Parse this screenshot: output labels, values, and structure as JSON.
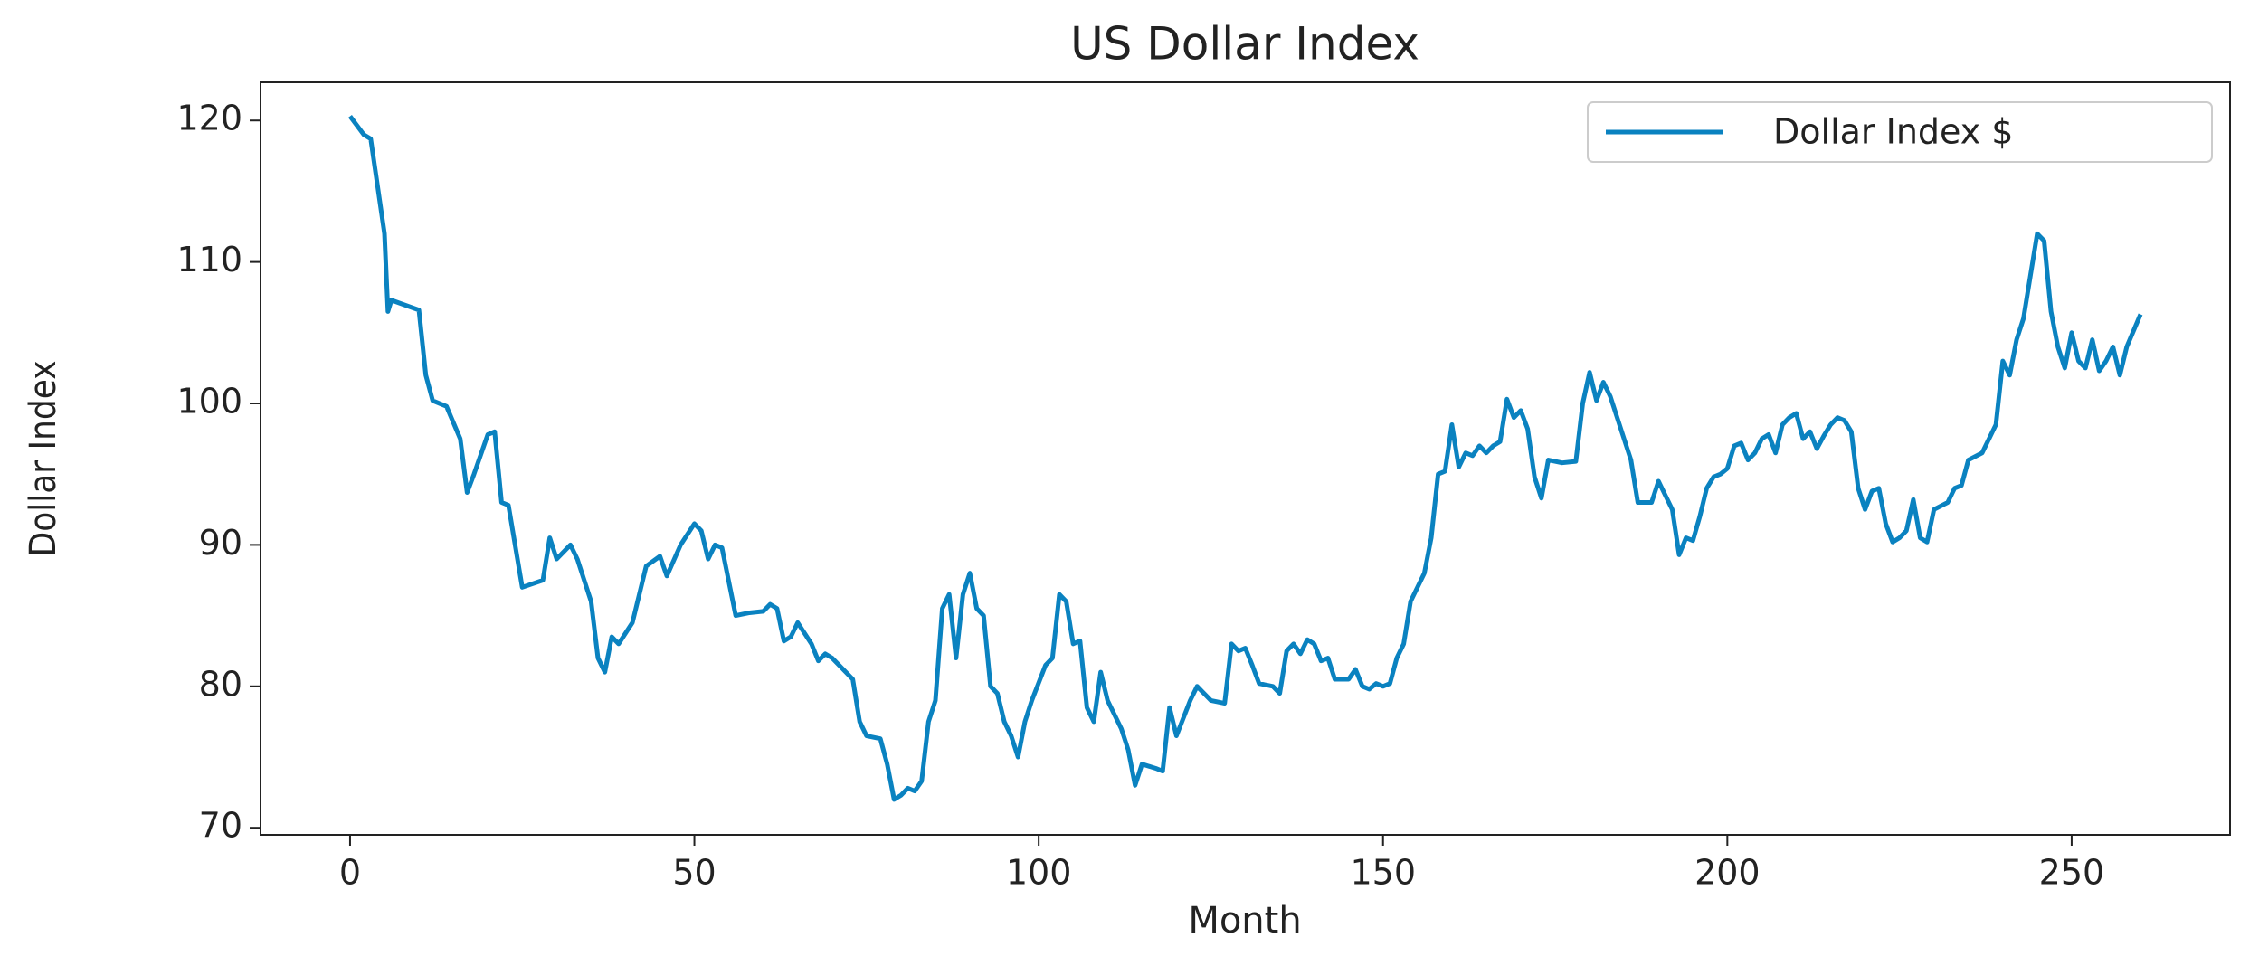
{
  "chart_data": {
    "type": "line",
    "title": "US Dollar Index",
    "xlabel": "Month",
    "ylabel": "Dollar Index",
    "x": [
      0,
      2,
      3,
      5,
      5.5,
      6,
      10,
      11,
      12,
      14,
      16,
      17,
      18,
      20,
      21,
      22,
      23,
      25,
      28,
      29,
      30,
      32,
      33,
      35,
      36,
      37,
      38,
      39,
      41,
      43,
      45,
      46,
      48,
      50,
      51,
      52,
      53,
      54,
      56,
      58,
      60,
      61,
      62,
      63,
      64,
      65,
      67,
      68,
      69,
      70,
      72,
      73,
      74,
      75,
      77,
      78,
      79,
      80,
      81,
      82,
      83,
      84,
      85,
      86,
      87,
      88,
      89,
      90,
      91,
      92,
      93,
      94,
      95,
      96,
      97,
      98,
      99,
      101,
      102,
      103,
      104,
      105,
      106,
      107,
      108,
      109,
      110,
      112,
      113,
      114,
      115,
      117,
      118,
      119,
      120,
      122,
      123,
      125,
      127,
      128,
      129,
      130,
      131,
      132,
      134,
      135,
      136,
      137,
      138,
      139,
      140,
      141,
      142,
      143,
      145,
      146,
      147,
      148,
      149,
      150,
      151,
      152,
      153,
      154,
      156,
      157,
      158,
      159,
      160,
      161,
      162,
      163,
      164,
      165,
      166,
      167,
      168,
      169,
      170,
      171,
      172,
      173,
      174,
      176,
      178,
      179,
      180,
      181,
      182,
      183,
      185,
      186,
      187,
      189,
      190,
      191,
      192,
      193,
      194,
      195,
      196,
      197,
      198,
      199,
      200,
      201,
      202,
      203,
      204,
      205,
      206,
      207,
      208,
      209,
      210,
      211,
      212,
      213,
      214,
      215,
      216,
      217,
      218,
      219,
      220,
      221,
      222,
      223,
      224,
      225,
      226,
      227,
      228,
      229,
      230,
      232,
      233,
      234,
      235,
      237,
      238,
      239,
      240,
      241,
      242,
      243,
      244,
      245,
      246,
      247,
      248,
      249,
      250,
      251,
      252,
      253,
      254,
      255,
      256,
      257,
      258,
      260
    ],
    "series": [
      {
        "name": "Dollar Index $",
        "color": "#0a82c0",
        "values": [
          120.3,
          119,
          118.7,
          112,
          106.5,
          107.3,
          106.6,
          102,
          100.2,
          99.8,
          97.5,
          93.7,
          95,
          97.8,
          98,
          93,
          92.8,
          87,
          87.5,
          90.5,
          89,
          90,
          89,
          86,
          82,
          81,
          83.5,
          83,
          84.5,
          88.5,
          89.2,
          87.8,
          90,
          91.5,
          91,
          89,
          90,
          89.8,
          85,
          85.2,
          85.3,
          85.8,
          85.5,
          83.2,
          83.5,
          84.5,
          83,
          81.8,
          82.3,
          82,
          81,
          80.5,
          77.5,
          76.5,
          76.3,
          74.5,
          72,
          72.3,
          72.8,
          72.6,
          73.3,
          77.5,
          79,
          85.5,
          86.5,
          82,
          86.5,
          88,
          85.5,
          85,
          80,
          79.5,
          77.5,
          76.5,
          75,
          77.5,
          79,
          81.5,
          82,
          86.5,
          86,
          83,
          83.2,
          78.5,
          77.5,
          81,
          79,
          77,
          75.5,
          73,
          74.5,
          74.2,
          74,
          78.5,
          76.5,
          79,
          80,
          79,
          78.8,
          83,
          82.5,
          82.7,
          81.5,
          80.2,
          80,
          79.5,
          82.5,
          83,
          82.3,
          83.3,
          83,
          81.8,
          82,
          80.5,
          80.5,
          81.2,
          80,
          79.8,
          80.2,
          80,
          80.2,
          82,
          83,
          86,
          88,
          90.5,
          95,
          95.2,
          98.5,
          95.5,
          96.5,
          96.3,
          97,
          96.5,
          97,
          97.3,
          100.3,
          99,
          99.5,
          98.2,
          94.8,
          93.3,
          96,
          95.8,
          95.9,
          100,
          102.2,
          100.2,
          101.5,
          100.5,
          97.5,
          96,
          93,
          93,
          94.5,
          93.5,
          92.5,
          89.3,
          90.5,
          90.3,
          92,
          94,
          94.8,
          95,
          95.4,
          97,
          97.2,
          96,
          96.5,
          97.5,
          97.8,
          96.5,
          98.5,
          99,
          99.3,
          97.5,
          98,
          96.8,
          97.7,
          98.5,
          99,
          98.8,
          98,
          94,
          92.5,
          93.8,
          94,
          91.5,
          90.2,
          90.5,
          91,
          93.2,
          90.5,
          90.2,
          92.5,
          93,
          94,
          94.2,
          96,
          96.5,
          97.5,
          98.5,
          103,
          102,
          104.5,
          106,
          109,
          112,
          111.5,
          106.5,
          104,
          102.5,
          105,
          103,
          102.5,
          104.5,
          102.3,
          103,
          104,
          102,
          104,
          106.3
        ]
      }
    ],
    "xlim": [
      -13,
      273
    ],
    "xticks": [
      0,
      50,
      100,
      150,
      200,
      250
    ],
    "ylim": [
      69.5,
      122.7
    ],
    "yticks": [
      70,
      80,
      90,
      100,
      110,
      120
    ],
    "grid": false,
    "legend": "upper right"
  }
}
